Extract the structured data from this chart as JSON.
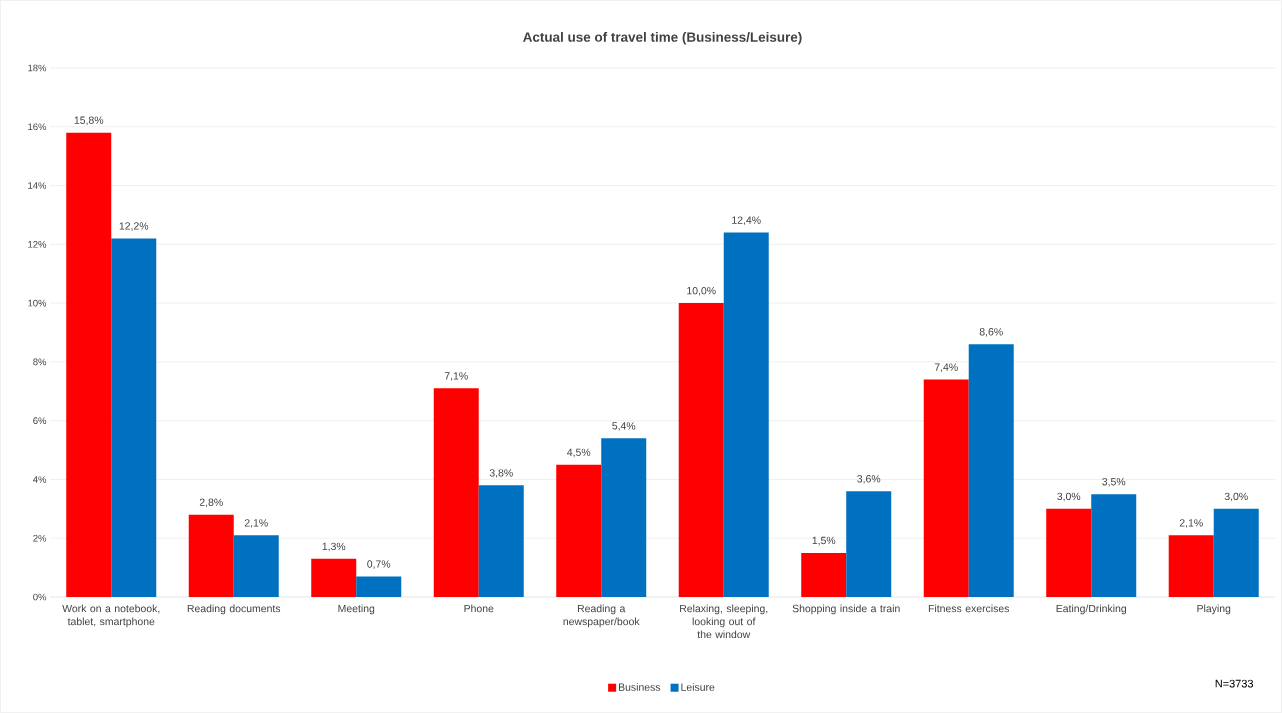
{
  "chart_data": {
    "type": "bar",
    "title": "Actual use of travel time (Business/Leisure)",
    "categories": [
      "Work on a notebook, tablet, smartphone",
      "Reading documents",
      "Meeting",
      "Phone",
      "Reading a newspaper/book",
      "Relaxing, sleeping, looking out of the window",
      "Shopping inside a train",
      "Fitness exercises",
      "Eating/Drinking",
      "Playing"
    ],
    "series": [
      {
        "name": "Business",
        "color": "#ff0000",
        "values": [
          15.8,
          2.8,
          1.3,
          7.1,
          4.5,
          10.0,
          1.5,
          7.4,
          3.0,
          2.1
        ],
        "value_labels": [
          "15,8%",
          "2,8%",
          "1,3%",
          "7,1%",
          "4,5%",
          "10,0%",
          "1,5%",
          "7,4%",
          "3,0%",
          "2,1%"
        ]
      },
      {
        "name": "Leisure",
        "color": "#0070c0",
        "values": [
          12.2,
          2.1,
          0.7,
          3.8,
          5.4,
          12.4,
          3.6,
          8.6,
          3.5,
          3.0
        ],
        "value_labels": [
          "12,2%",
          "2,1%",
          "0,7%",
          "3,8%",
          "5,4%",
          "12,4%",
          "3,6%",
          "8,6%",
          "3,5%",
          "3,0%"
        ]
      }
    ],
    "ylim": [
      0,
      18
    ],
    "yticks": [
      {
        "value": 0,
        "label": "0%"
      },
      {
        "value": 2,
        "label": "2%"
      },
      {
        "value": 4,
        "label": "4%"
      },
      {
        "value": 6,
        "label": "6%"
      },
      {
        "value": 8,
        "label": "8%"
      },
      {
        "value": 10,
        "label": "10%"
      },
      {
        "value": 12,
        "label": "12%"
      },
      {
        "value": 14,
        "label": "14%"
      },
      {
        "value": 16,
        "label": "16%"
      },
      {
        "value": 18,
        "label": "18%"
      }
    ],
    "grid": "y",
    "legend": "bottom",
    "annotations": [
      "N=3733"
    ]
  }
}
